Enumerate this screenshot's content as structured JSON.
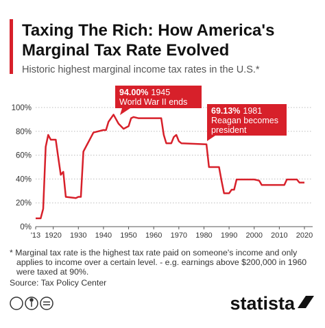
{
  "chart_data": {
    "type": "line",
    "title": [
      "Taxing The Rich: How America's",
      "Marginal Tax Rate Evolved"
    ],
    "subtitle": "Historic highest marginal income tax rates in the U.S.*",
    "x": [
      1913,
      1915,
      1916,
      1917,
      1918,
      1919,
      1921,
      1922,
      1923,
      1924,
      1925,
      1929,
      1930,
      1931,
      1932,
      1936,
      1940,
      1941,
      1942,
      1944,
      1946,
      1948,
      1950,
      1951,
      1952,
      1954,
      1963,
      1964,
      1965,
      1967,
      1968,
      1969,
      1970,
      1971,
      1981,
      1982,
      1986,
      1987,
      1988,
      1990,
      1991,
      1992,
      1993,
      2000,
      2001,
      2002,
      2003,
      2012,
      2013,
      2017,
      2018,
      2020
    ],
    "values": [
      7,
      7,
      15,
      67,
      77,
      73,
      73,
      58,
      43.5,
      46,
      25,
      24,
      25,
      25,
      63,
      79,
      81.1,
      81,
      88,
      94,
      86.45,
      82.13,
      84.36,
      91,
      92,
      91,
      91,
      77,
      70,
      70,
      75.25,
      77,
      71.75,
      70,
      69.13,
      50,
      50,
      38.5,
      28,
      28,
      31,
      31,
      39.6,
      39.6,
      39.1,
      38.6,
      35,
      35,
      39.6,
      39.6,
      37,
      37
    ],
    "color": "#d7202a",
    "xlim": [
      1913,
      2020
    ],
    "xticks": [
      {
        "value": 1913,
        "label": "'13"
      },
      1920,
      1930,
      1940,
      1950,
      1960,
      1970,
      1980,
      1990,
      2000,
      2010,
      2020
    ],
    "ylim": [
      0,
      100
    ],
    "yticks": [
      {
        "value": 0,
        "label": "0%"
      },
      {
        "value": 20,
        "label": "20%"
      },
      {
        "value": 40,
        "label": "40%"
      },
      {
        "value": 60,
        "label": "60%"
      },
      {
        "value": 80,
        "label": "80%"
      },
      {
        "value": 100,
        "label": "100%"
      }
    ],
    "grid": true,
    "annotations": [
      {
        "value_label": "94.00%",
        "year": "1945",
        "text": [
          "World War II ends"
        ]
      },
      {
        "value_label": "69.13%",
        "year": "1981",
        "text": [
          "Reagan becomes",
          "president"
        ]
      }
    ],
    "footnote": [
      "* Marginal tax rate is the highest tax rate paid on someone's income and only",
      "applies to income over a certain level. - e.g. earnings above $200,000 in 1960",
      "were taxed at 90%."
    ],
    "source": "Source: Tax Policy Center",
    "brand": "statista"
  }
}
